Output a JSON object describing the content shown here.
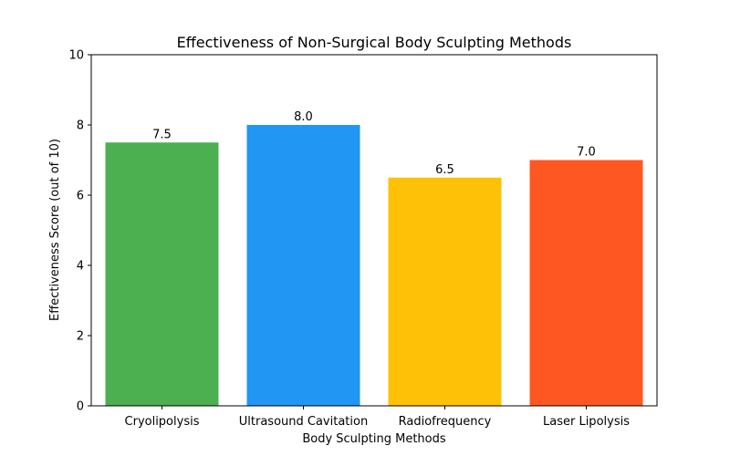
{
  "chart_data": {
    "type": "bar",
    "title": "Effectiveness of Non-Surgical Body Sculpting Methods",
    "xlabel": "Body Sculpting Methods",
    "ylabel": "Effectiveness Score (out of 10)",
    "categories": [
      "Cryolipolysis",
      "Ultrasound Cavitation",
      "Radiofrequency",
      "Laser Lipolysis"
    ],
    "values": [
      7.5,
      8.0,
      6.5,
      7.0
    ],
    "value_labels": [
      "7.5",
      "8.0",
      "6.5",
      "7.0"
    ],
    "colors": [
      "#4CAF50",
      "#2196F3",
      "#FFC107",
      "#FF5722"
    ],
    "ylim": [
      0,
      10
    ],
    "yticks": [
      "0",
      "2",
      "4",
      "6",
      "8",
      "10"
    ],
    "grid": false,
    "legend": "none"
  }
}
